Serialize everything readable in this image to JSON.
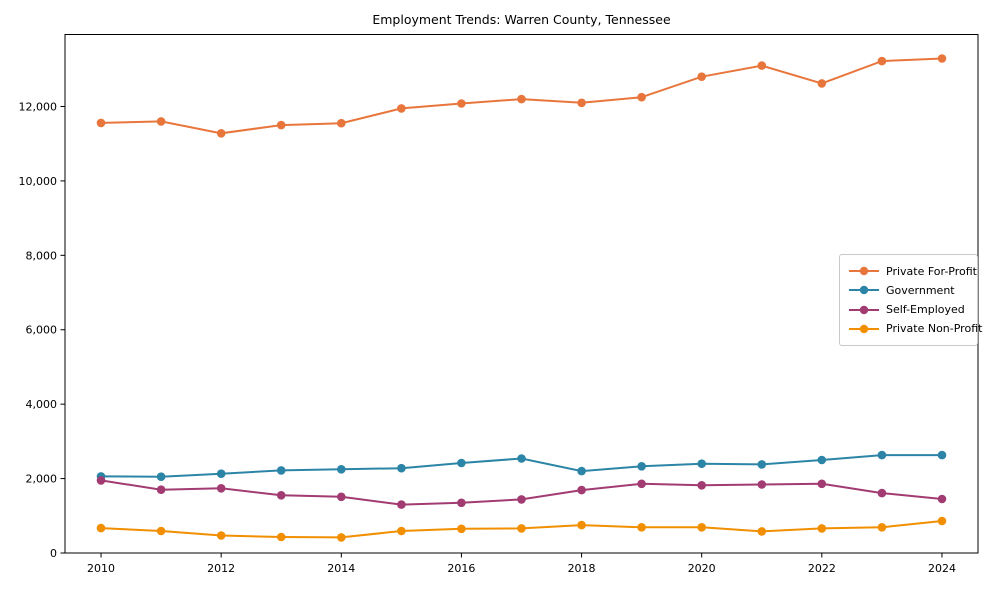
{
  "chart_data": {
    "type": "line",
    "title": "Employment Trends: Warren County, Tennessee",
    "xlabel": "",
    "ylabel": "",
    "grid": false,
    "legend_position": "center right",
    "x": [
      2010,
      2011,
      2012,
      2013,
      2014,
      2015,
      2016,
      2017,
      2018,
      2019,
      2020,
      2021,
      2022,
      2023,
      2024
    ],
    "x_tick_labels": [
      "2010",
      "2012",
      "2014",
      "2016",
      "2018",
      "2020",
      "2022",
      "2024"
    ],
    "x_tick_values": [
      2010,
      2012,
      2014,
      2016,
      2018,
      2020,
      2022,
      2024
    ],
    "y_tick_labels": [
      "0",
      "2,000",
      "4,000",
      "6,000",
      "8,000",
      "10,000",
      "12,000"
    ],
    "y_tick_values": [
      0,
      2000,
      4000,
      6000,
      8000,
      10000,
      12000
    ],
    "xlim": [
      2009.4,
      2024.6
    ],
    "ylim": [
      0,
      13935
    ],
    "series": [
      {
        "name": "Private For-Profit",
        "color": "#E8763C",
        "values": [
          11560,
          11600,
          11280,
          11500,
          11550,
          11950,
          12080,
          12200,
          12100,
          12250,
          12800,
          13100,
          12620,
          13220,
          13290
        ]
      },
      {
        "name": "Government",
        "color": "#2C85A6",
        "values": [
          2060,
          2050,
          2130,
          2220,
          2250,
          2280,
          2420,
          2540,
          2200,
          2330,
          2400,
          2380,
          2500,
          2630,
          2630
        ]
      },
      {
        "name": "Self-Employed",
        "color": "#A23B72",
        "values": [
          1950,
          1700,
          1740,
          1550,
          1510,
          1300,
          1350,
          1440,
          1690,
          1860,
          1820,
          1840,
          1860,
          1610,
          1450
        ]
      },
      {
        "name": "Private Non-Profit",
        "color": "#F18F01",
        "values": [
          670,
          590,
          470,
          430,
          420,
          590,
          650,
          660,
          750,
          690,
          690,
          580,
          660,
          690,
          860
        ]
      }
    ],
    "plot_style": {
      "background_color": "#ffffff",
      "spine_color": "#000000",
      "legend_border_color": "#c9c9c9"
    }
  }
}
